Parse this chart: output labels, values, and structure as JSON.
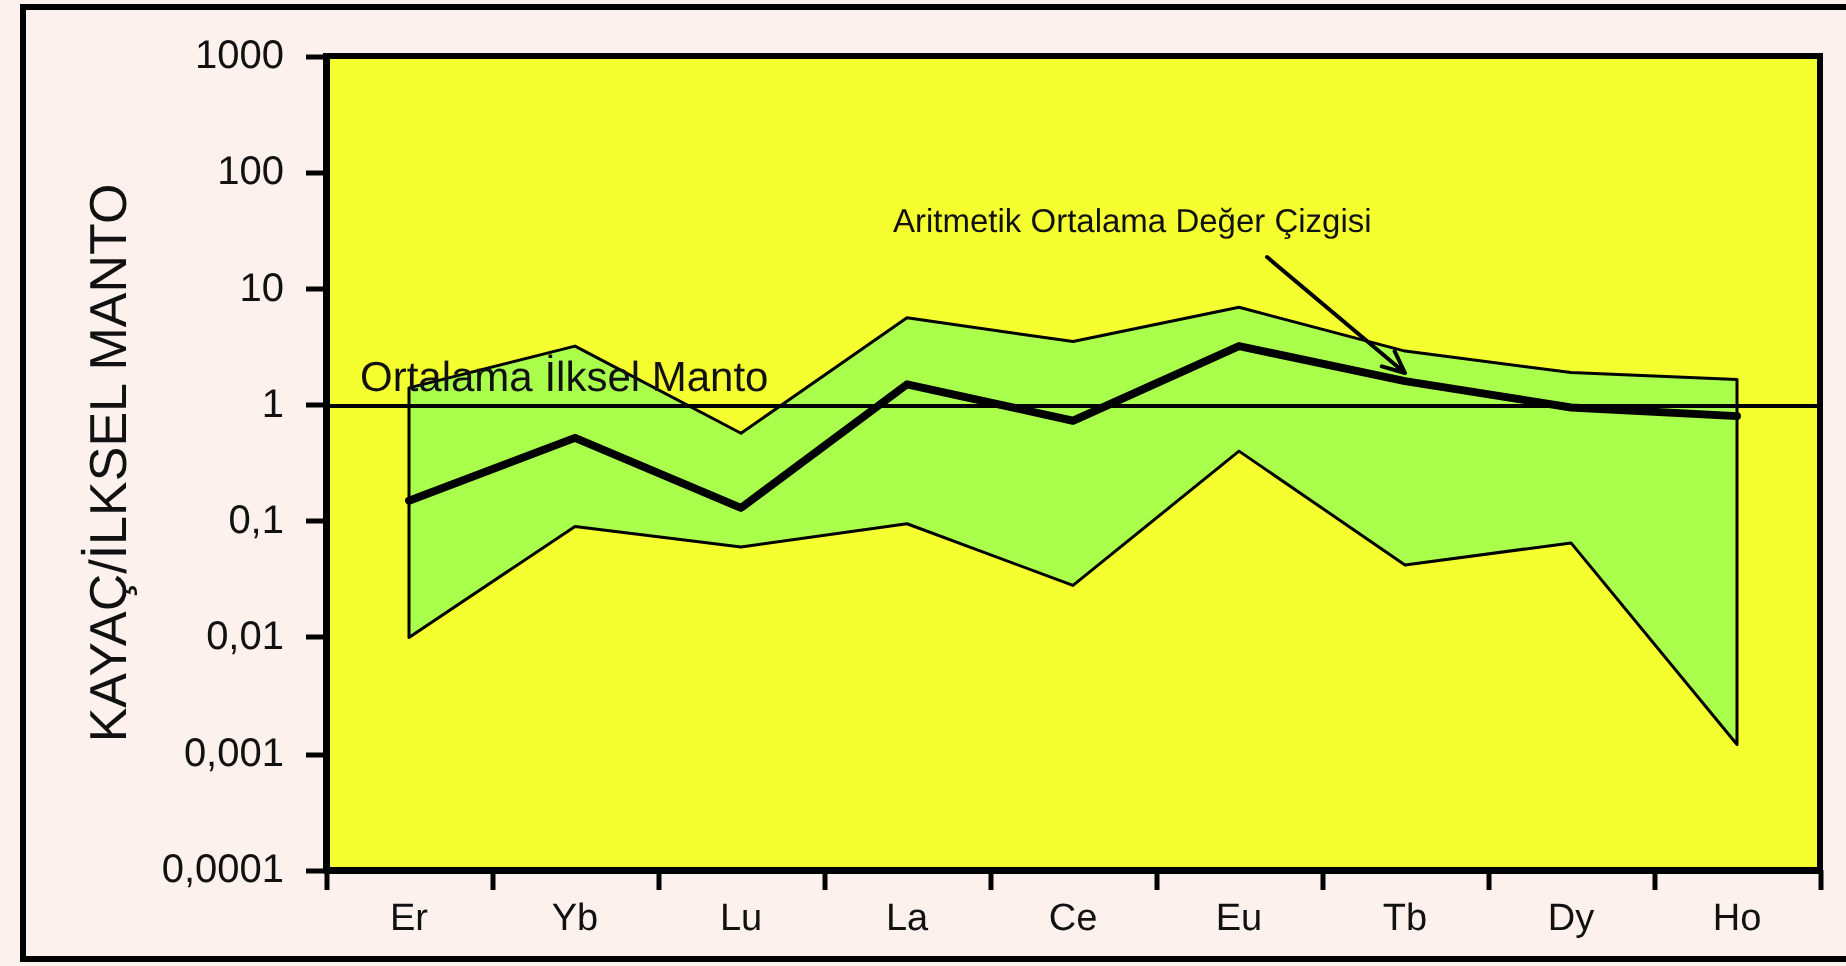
{
  "chart_data": {
    "type": "line",
    "ylabel": "KAYAÇ/İLKSEL MANTO",
    "categories": [
      "Er",
      "Yb",
      "Lu",
      "La",
      "Ce",
      "Eu",
      "Tb",
      "Dy",
      "Ho"
    ],
    "series": [
      {
        "color": "#000000",
        "values": [
          0.15,
          0.52,
          0.13,
          1.5,
          0.73,
          3.2,
          1.6,
          0.95,
          0.8
        ],
        "lower": [
          0.01,
          0.09,
          0.06,
          0.095,
          0.028,
          0.4,
          0.042,
          0.065,
          0.0012
        ],
        "upper": [
          1.4,
          3.2,
          0.57,
          5.6,
          3.5,
          6.9,
          2.9,
          1.9,
          1.65
        ]
      }
    ],
    "log": true,
    "ylim": [
      0.0001,
      1000
    ],
    "yticks": [
      {
        "value": 0.0001,
        "label": "0,0001"
      },
      {
        "value": 0.001,
        "label": "0,001"
      },
      {
        "value": 0.01,
        "label": "0,01"
      },
      {
        "value": 0.1,
        "label": "0,1"
      },
      1,
      10,
      100,
      1000
    ],
    "ref_lines": [
      {
        "axis": "y",
        "value": 1,
        "label": "Ortalama İlksel Manto",
        "color": "#000000"
      }
    ],
    "annotations": [
      {
        "text": "Aritmetik Ortalama Değer Çizgisi",
        "x": "Tb",
        "y": 1.6
      }
    ],
    "grid": false,
    "marker": "none",
    "line_style": "solid"
  }
}
